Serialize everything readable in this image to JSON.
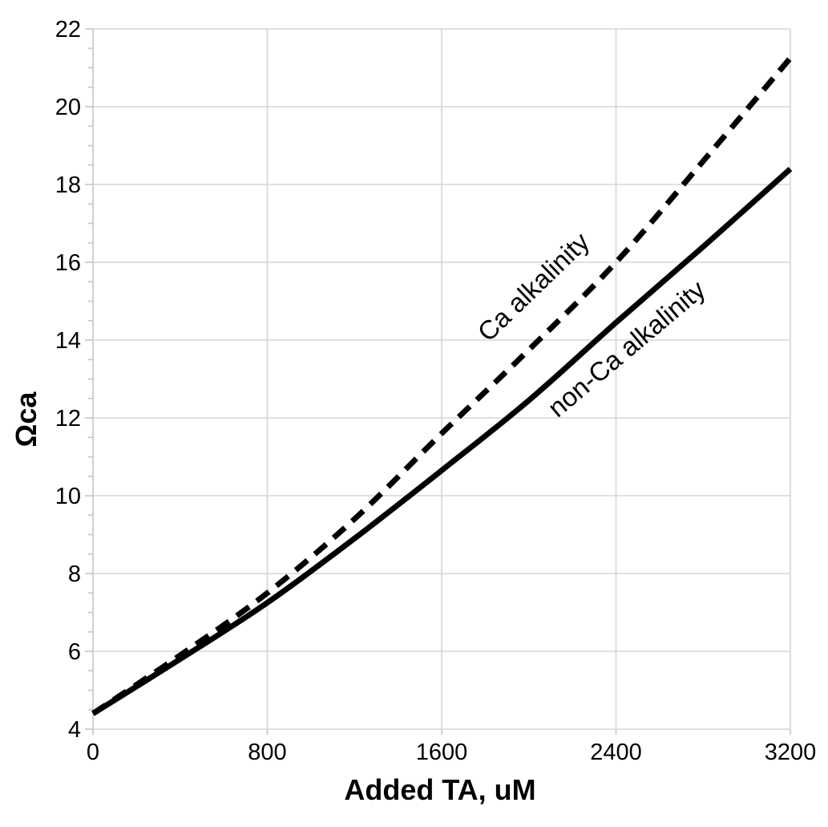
{
  "chart_data": {
    "type": "line",
    "title": "",
    "xlabel": "Added TA, uM",
    "ylabel": "Ωca",
    "xlim": [
      0,
      3200
    ],
    "ylim": [
      4,
      22
    ],
    "x_ticks": [
      0,
      800,
      1600,
      2400,
      3200
    ],
    "y_ticks": [
      4,
      6,
      8,
      10,
      12,
      14,
      16,
      18,
      20,
      22
    ],
    "y_minor_tick_step": 0.5,
    "grid": true,
    "legend": "inline-labels-on-curves",
    "x": [
      0,
      400,
      800,
      1200,
      1600,
      2000,
      2400,
      2800,
      3200
    ],
    "series": [
      {
        "name": "Ca alkalinity",
        "line_style": "dashed",
        "color": "#000000",
        "values": [
          4.4,
          5.9,
          7.5,
          9.4,
          11.6,
          13.75,
          16.0,
          18.6,
          21.25
        ]
      },
      {
        "name": "non-Ca alkalinity",
        "line_style": "solid",
        "color": "#000000",
        "values": [
          4.4,
          5.8,
          7.25,
          8.9,
          10.65,
          12.45,
          14.45,
          16.4,
          18.4
        ]
      }
    ],
    "annotations": [
      {
        "text": "Ca alkalinity",
        "x": 2050,
        "y": 15.2,
        "angle_deg": -44
      },
      {
        "text": "non-Ca alkalinity",
        "x": 2475,
        "y": 13.6,
        "angle_deg": -40
      }
    ]
  },
  "colors": {
    "background": "#ffffff",
    "gridline": "#d6d6d6",
    "axis": "#c2c6c7",
    "text": "#000000",
    "series_stroke": "#000000"
  }
}
